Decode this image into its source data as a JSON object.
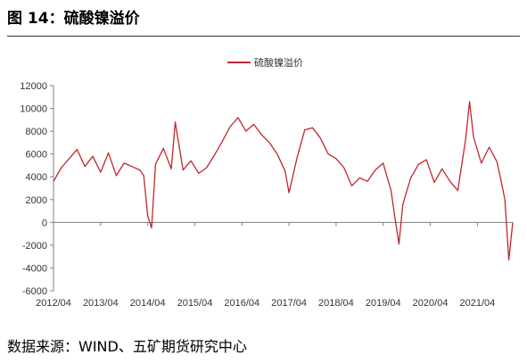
{
  "header": {
    "title": "图 14：硫酸镍溢价"
  },
  "footer": {
    "source": "数据来源：WIND、五矿期货研究中心"
  },
  "colors": {
    "series": "#c0272d",
    "axis": "#808080",
    "text": "#333333"
  },
  "chart_data": {
    "type": "line",
    "title": "",
    "xlabel": "",
    "ylabel": "",
    "legend": {
      "position": "top-center",
      "entries": [
        "硫酸镍溢价"
      ]
    },
    "grid": false,
    "ylim": [
      -6000,
      12000
    ],
    "yticks": [
      -6000,
      -4000,
      -2000,
      0,
      2000,
      4000,
      6000,
      8000,
      10000,
      12000
    ],
    "xticks": [
      "2012/04",
      "2013/04",
      "2014/04",
      "2015/04",
      "2016/04",
      "2017/04",
      "2018/04",
      "2019/04",
      "2020/04",
      "2021/04"
    ],
    "x_range": [
      "2012/04",
      "2022/01"
    ],
    "series": [
      {
        "name": "硫酸镍溢价",
        "color": "#c0272d",
        "points": [
          [
            "2012/04",
            3600
          ],
          [
            "2012/06",
            4800
          ],
          [
            "2012/08",
            5600
          ],
          [
            "2012/10",
            6400
          ],
          [
            "2012/12",
            4900
          ],
          [
            "2013/02",
            5800
          ],
          [
            "2013/04",
            4400
          ],
          [
            "2013/06",
            6100
          ],
          [
            "2013/08",
            4100
          ],
          [
            "2013/10",
            5200
          ],
          [
            "2013/12",
            4900
          ],
          [
            "2014/02",
            4600
          ],
          [
            "2014/03",
            4100
          ],
          [
            "2014/04",
            600
          ],
          [
            "2014/05",
            -500
          ],
          [
            "2014/06",
            5100
          ],
          [
            "2014/08",
            6500
          ],
          [
            "2014/10",
            4700
          ],
          [
            "2014/11",
            8800
          ],
          [
            "2015/01",
            4600
          ],
          [
            "2015/03",
            5400
          ],
          [
            "2015/05",
            4300
          ],
          [
            "2015/07",
            4800
          ],
          [
            "2015/09",
            5900
          ],
          [
            "2015/11",
            7100
          ],
          [
            "2016/01",
            8400
          ],
          [
            "2016/03",
            9200
          ],
          [
            "2016/05",
            8000
          ],
          [
            "2016/07",
            8600
          ],
          [
            "2016/09",
            7700
          ],
          [
            "2016/11",
            7000
          ],
          [
            "2017/01",
            6000
          ],
          [
            "2017/03",
            4500
          ],
          [
            "2017/04",
            2600
          ],
          [
            "2017/06",
            5600
          ],
          [
            "2017/08",
            8100
          ],
          [
            "2017/10",
            8300
          ],
          [
            "2017/12",
            7400
          ],
          [
            "2018/02",
            6000
          ],
          [
            "2018/04",
            5600
          ],
          [
            "2018/06",
            4800
          ],
          [
            "2018/08",
            3200
          ],
          [
            "2018/10",
            3900
          ],
          [
            "2018/12",
            3600
          ],
          [
            "2019/02",
            4600
          ],
          [
            "2019/04",
            5200
          ],
          [
            "2019/06",
            2800
          ],
          [
            "2019/07",
            400
          ],
          [
            "2019/08",
            -1900
          ],
          [
            "2019/09",
            1600
          ],
          [
            "2019/11",
            3900
          ],
          [
            "2020/01",
            5100
          ],
          [
            "2020/03",
            5500
          ],
          [
            "2020/05",
            3500
          ],
          [
            "2020/07",
            4700
          ],
          [
            "2020/09",
            3600
          ],
          [
            "2020/11",
            2800
          ],
          [
            "2021/01",
            7300
          ],
          [
            "2021/02",
            10600
          ],
          [
            "2021/03",
            7500
          ],
          [
            "2021/05",
            5200
          ],
          [
            "2021/07",
            6600
          ],
          [
            "2021/09",
            5300
          ],
          [
            "2021/10",
            3700
          ],
          [
            "2021/11",
            2000
          ],
          [
            "2021/12",
            -3300
          ],
          [
            "2022/01",
            0
          ]
        ]
      }
    ]
  }
}
